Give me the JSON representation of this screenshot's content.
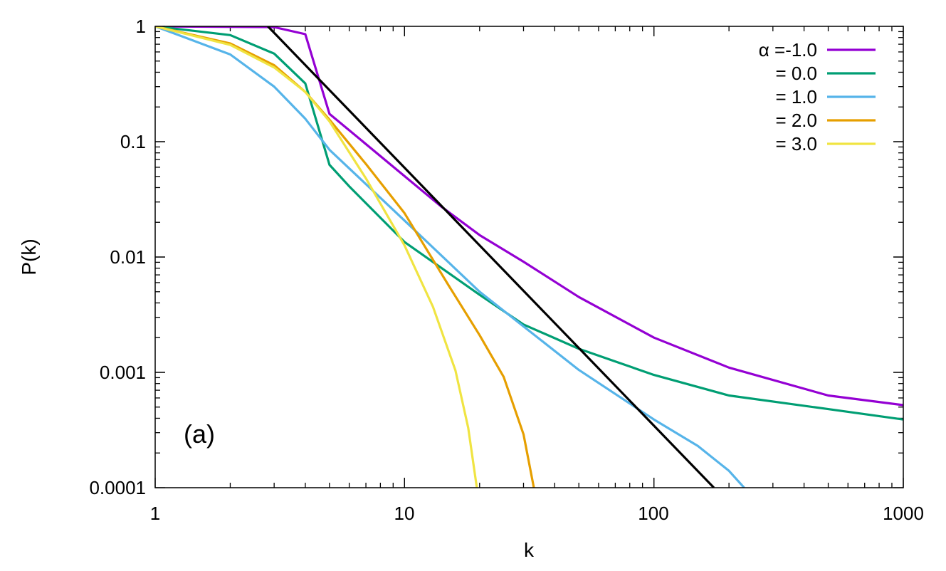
{
  "chart_data": {
    "type": "line",
    "title": "",
    "xlabel": "k",
    "ylabel": "P(k)",
    "xscale": "log",
    "yscale": "log",
    "xlim": [
      1,
      1000
    ],
    "ylim": [
      0.0001,
      1
    ],
    "x_ticks": [
      "1",
      "10",
      "100",
      "1000"
    ],
    "y_ticks": [
      "1",
      "0.1",
      "0.01",
      "0.001",
      "0.0001"
    ],
    "grid": false,
    "legend_position": "top-right",
    "annotation": "(a)",
    "series": [
      {
        "name": "α =-1.0",
        "color": "#9400d3",
        "x": [
          1,
          3,
          4,
          5,
          14,
          20,
          30,
          50,
          100,
          200,
          500,
          1000
        ],
        "y": [
          1,
          0.985,
          0.855,
          0.174,
          0.0275,
          0.0155,
          0.0091,
          0.0045,
          0.002,
          0.0011,
          0.00063,
          0.00052
        ]
      },
      {
        "name": "= 0.0",
        "color": "#009e73",
        "x": [
          1,
          2,
          3,
          4,
          5,
          6,
          10,
          20,
          30,
          50,
          100,
          200,
          500,
          1000
        ],
        "y": [
          1,
          0.84,
          0.58,
          0.32,
          0.063,
          0.041,
          0.0135,
          0.0047,
          0.0026,
          0.0016,
          0.00095,
          0.00063,
          0.00048,
          0.00039
        ]
      },
      {
        "name": "= 1.0",
        "color": "#56b4e9",
        "x": [
          1,
          2,
          3,
          4,
          5,
          10,
          20,
          30,
          50,
          100,
          150,
          200,
          230
        ],
        "y": [
          1,
          0.57,
          0.3,
          0.158,
          0.085,
          0.0207,
          0.005,
          0.0025,
          0.00105,
          0.00039,
          0.00023,
          0.00014,
          0.0001
        ]
      },
      {
        "name": "= 2.0",
        "color": "#e69f00",
        "x": [
          1,
          2,
          3,
          4,
          5,
          7,
          10,
          15,
          20,
          25,
          30,
          33
        ],
        "y": [
          1,
          0.71,
          0.46,
          0.27,
          0.155,
          0.064,
          0.024,
          0.0057,
          0.0021,
          0.00091,
          0.00029,
          0.0001
        ]
      },
      {
        "name": "= 3.0",
        "color": "#f0e442",
        "x": [
          1,
          2,
          3,
          4,
          5,
          7,
          10,
          13,
          16,
          18,
          19.5
        ],
        "y": [
          1,
          0.69,
          0.44,
          0.27,
          0.15,
          0.048,
          0.0126,
          0.0037,
          0.00104,
          0.00033,
          0.0001
        ]
      },
      {
        "color": "#000000",
        "x": [
          2.83,
          174
        ],
        "y": [
          1,
          0.0001
        ]
      }
    ]
  }
}
